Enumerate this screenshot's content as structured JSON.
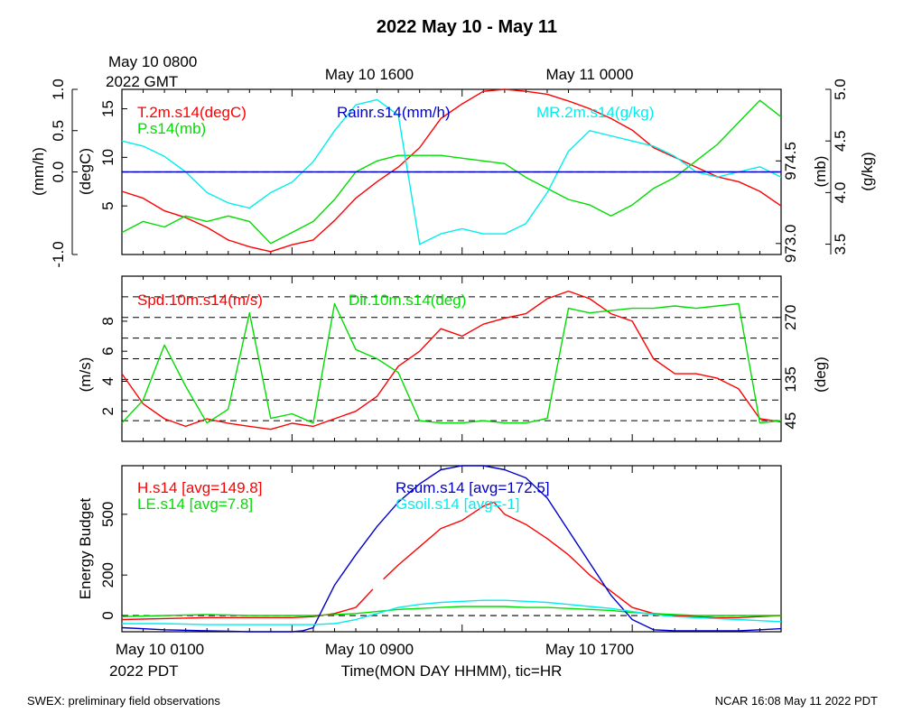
{
  "page": {
    "title": "2022 May 10 - May 11",
    "top_axis": {
      "first_label_line1": "May 10 0800",
      "first_label_line2": "2022 GMT",
      "labels": [
        "May 10 1600",
        "May 11 0000"
      ]
    },
    "bottom_axis": {
      "first_label_line1": "May 10 0100",
      "first_label_line2": "2022 PDT",
      "labels": [
        "May 10 0900",
        "May 10 1700"
      ],
      "xlabel": "Time(MON DAY HHMM), tic=HR"
    },
    "footer_left": "SWEX: preliminary field observations",
    "footer_right": "NCAR 16:08 May 11 2022 PDT",
    "colors": {
      "red": "#ff0000",
      "green": "#00dd00",
      "blue": "#0000cc",
      "cyan": "#00eeee",
      "black": "#000000"
    }
  },
  "chart_data": [
    {
      "type": "line",
      "x_unit": "hours since May 10 0100 PDT",
      "xlim": [
        0,
        31
      ],
      "axes": {
        "left_outer": {
          "label": "(mm/h)",
          "ylim": [
            -1.0,
            1.0
          ],
          "ticks": [
            "1.0",
            "0.5",
            "0.0",
            "-1.0"
          ],
          "tick_values": [
            1.0,
            0.5,
            0.0,
            -1.0
          ]
        },
        "left_inner": {
          "label": "(degC)",
          "ylim": [
            0,
            17
          ],
          "ticks": [
            "15",
            "10",
            "5"
          ],
          "tick_values": [
            15,
            10,
            5
          ]
        },
        "right_inner": {
          "label": "(mb)",
          "ylim": [
            972.8,
            975.8
          ],
          "ticks": [
            "974.5",
            "973.0"
          ],
          "tick_values": [
            974.5,
            973.0
          ]
        },
        "right_outer": {
          "label": "(g/kg)",
          "ylim": [
            3.4,
            5.0
          ],
          "ticks": [
            "5.0",
            "4.5",
            "4.0",
            "3.5"
          ],
          "tick_values": [
            5.0,
            4.5,
            4.0,
            3.5
          ]
        }
      },
      "series": [
        {
          "name": "T.2m.s14(degC)",
          "axis": "left_inner",
          "color": "#ff0000",
          "x": [
            0,
            1,
            2,
            3,
            4,
            5,
            6,
            7,
            8,
            9,
            10,
            11,
            12,
            13,
            14,
            15,
            16,
            17,
            18,
            19,
            20,
            21,
            22,
            23,
            24,
            25,
            26,
            27,
            28,
            29,
            30,
            31
          ],
          "values": [
            6.5,
            5.8,
            4.5,
            3.8,
            2.8,
            1.5,
            0.8,
            0.3,
            1.0,
            1.5,
            3.5,
            5.8,
            7.5,
            9.0,
            11.0,
            14.0,
            15.5,
            16.8,
            17.0,
            16.8,
            16.5,
            15.8,
            15.0,
            14.0,
            12.8,
            11.0,
            10.0,
            9.0,
            8.0,
            7.5,
            6.5,
            5.0
          ]
        },
        {
          "name": "P.s14(mb)",
          "axis": "right_inner",
          "color": "#00dd00",
          "x": [
            0,
            1,
            2,
            3,
            4,
            5,
            6,
            7,
            8,
            9,
            10,
            11,
            12,
            13,
            14,
            15,
            16,
            17,
            18,
            19,
            20,
            21,
            22,
            23,
            24,
            25,
            26,
            27,
            28,
            29,
            30,
            31
          ],
          "values": [
            973.2,
            973.4,
            973.3,
            973.5,
            973.4,
            973.5,
            973.4,
            973.0,
            973.2,
            973.4,
            973.8,
            974.3,
            974.5,
            974.6,
            974.6,
            974.6,
            974.55,
            974.5,
            974.45,
            974.2,
            974.0,
            973.8,
            973.7,
            973.5,
            973.7,
            974.0,
            974.2,
            974.5,
            974.8,
            975.2,
            975.6,
            975.3
          ]
        },
        {
          "name": "MR.2m.s14(g/kg)",
          "axis": "right_outer",
          "color": "#00eeee",
          "x": [
            0,
            1,
            2,
            3,
            4,
            5,
            6,
            7,
            8,
            9,
            10,
            11,
            12,
            13,
            14,
            15,
            16,
            17,
            18,
            19,
            20,
            21,
            22,
            23,
            24,
            25,
            26,
            27,
            28,
            29,
            30,
            31
          ],
          "values": [
            4.5,
            4.45,
            4.35,
            4.2,
            4.0,
            3.9,
            3.85,
            4.0,
            4.1,
            4.3,
            4.6,
            4.85,
            4.9,
            4.75,
            3.5,
            3.6,
            3.65,
            3.6,
            3.6,
            3.7,
            4.0,
            4.4,
            4.6,
            4.55,
            4.5,
            4.45,
            4.35,
            4.2,
            4.15,
            4.2,
            4.25,
            4.15
          ]
        },
        {
          "name": "Rainr.s14(mm/h)",
          "axis": "left_outer",
          "color": "#0000cc",
          "x": [
            0,
            31
          ],
          "values": [
            0,
            0
          ]
        }
      ],
      "reference_lines": [
        {
          "axis": "left_outer",
          "value": 0,
          "style": "dashed",
          "color": "#000000"
        }
      ]
    },
    {
      "type": "line",
      "x_unit": "hours since May 10 0100 PDT",
      "xlim": [
        0,
        31
      ],
      "axes": {
        "left": {
          "label": "(m/s)",
          "ylim": [
            0,
            11
          ],
          "ticks": [
            "8",
            "6",
            "4",
            "2"
          ],
          "tick_values": [
            8,
            6,
            4,
            2
          ]
        },
        "right": {
          "label": "(deg)",
          "ylim": [
            0,
            360
          ],
          "ticks": [
            "270",
            "135",
            "45"
          ],
          "tick_values": [
            270,
            135,
            45
          ]
        }
      },
      "series": [
        {
          "name": "Spd.10m.s14(m/s)",
          "axis": "left",
          "color": "#ff0000",
          "x": [
            0,
            1,
            2,
            3,
            4,
            5,
            6,
            7,
            8,
            9,
            10,
            11,
            12,
            13,
            14,
            15,
            16,
            17,
            18,
            19,
            20,
            21,
            22,
            23,
            24,
            25,
            26,
            27,
            28,
            29,
            30,
            31
          ],
          "values": [
            4.5,
            2.5,
            1.5,
            1.0,
            1.5,
            1.2,
            1.0,
            0.8,
            1.2,
            1.0,
            1.5,
            2.0,
            3.0,
            5.0,
            6.0,
            7.5,
            7.0,
            7.8,
            8.2,
            8.5,
            9.5,
            10.0,
            9.5,
            8.5,
            8.0,
            5.5,
            4.5,
            4.5,
            4.2,
            3.5,
            1.5,
            1.3
          ]
        },
        {
          "name": "Dir.10m.s14(deg)",
          "axis": "right",
          "color": "#00dd00",
          "x": [
            0,
            1,
            2,
            3,
            4,
            5,
            6,
            7,
            8,
            9,
            10,
            11,
            12,
            13,
            14,
            15,
            16,
            17,
            18,
            19,
            20,
            21,
            22,
            23,
            24,
            25,
            26,
            27,
            28,
            29,
            30,
            31
          ],
          "values": [
            40,
            90,
            210,
            120,
            40,
            70,
            280,
            50,
            60,
            40,
            300,
            200,
            180,
            150,
            45,
            40,
            40,
            45,
            40,
            40,
            50,
            290,
            280,
            285,
            290,
            290,
            295,
            290,
            295,
            300,
            40,
            45
          ]
        }
      ],
      "reference_lines": [
        {
          "axis": "right",
          "value": 45,
          "style": "dashed"
        },
        {
          "axis": "right",
          "value": 90,
          "style": "dashed"
        },
        {
          "axis": "right",
          "value": 135,
          "style": "dashed"
        },
        {
          "axis": "right",
          "value": 180,
          "style": "dashed"
        },
        {
          "axis": "right",
          "value": 225,
          "style": "dashed"
        },
        {
          "axis": "right",
          "value": 270,
          "style": "dashed"
        },
        {
          "axis": "right",
          "value": 315,
          "style": "dashed"
        }
      ]
    },
    {
      "type": "line",
      "x_unit": "hours since May 10 0100 PDT",
      "xlim": [
        0,
        31
      ],
      "axes": {
        "left": {
          "label": "Energy Budget",
          "ylim": [
            -80,
            740
          ],
          "ticks": [
            "500",
            "200",
            "0"
          ],
          "tick_values": [
            500,
            200,
            0
          ]
        }
      },
      "series": [
        {
          "name": "H.s14 [avg=149.8]",
          "color": "#ff0000",
          "x": [
            0,
            2,
            4,
            6,
            8,
            9,
            10,
            11,
            11.8,
            null,
            12.3,
            13,
            14,
            15,
            16,
            17,
            17.5,
            18,
            19,
            20,
            21,
            22,
            23,
            24,
            25,
            26,
            27,
            28,
            29,
            30,
            31
          ],
          "values": [
            -20,
            -15,
            -10,
            -10,
            -10,
            -5,
            10,
            40,
            130,
            null,
            180,
            250,
            340,
            430,
            470,
            540,
            560,
            500,
            450,
            380,
            300,
            200,
            120,
            40,
            10,
            0,
            -5,
            -10,
            -10,
            -5,
            0
          ]
        },
        {
          "name": "LE.s14 [avg=7.8]",
          "color": "#00dd00",
          "x": [
            0,
            2,
            4,
            6,
            8,
            9,
            10,
            11,
            12,
            13,
            14,
            15,
            16,
            17,
            18,
            19,
            20,
            21,
            22,
            23,
            24,
            25,
            26,
            27,
            28,
            29,
            30,
            31
          ],
          "values": [
            -5,
            0,
            5,
            0,
            0,
            0,
            5,
            10,
            20,
            30,
            35,
            40,
            45,
            45,
            45,
            40,
            40,
            35,
            30,
            25,
            15,
            10,
            5,
            0,
            0,
            0,
            0,
            0
          ]
        },
        {
          "name": "Rsum.s14 [avg=172.5]",
          "color": "#0000cc",
          "x": [
            0,
            2,
            4,
            6,
            8,
            8.5,
            9,
            10,
            11,
            12,
            13,
            14,
            15,
            16,
            17,
            18,
            19,
            20,
            21,
            22,
            23,
            24,
            25,
            26,
            27,
            28,
            29,
            30,
            31
          ],
          "values": [
            -60,
            -70,
            -75,
            -80,
            -80,
            -75,
            -60,
            150,
            300,
            440,
            560,
            650,
            720,
            750,
            750,
            720,
            680,
            580,
            420,
            260,
            100,
            -20,
            -70,
            -75,
            -75,
            -75,
            -75,
            -70,
            -65
          ]
        },
        {
          "name": "Gsoil.s14 [avg=-1]",
          "color": "#00eeee",
          "x": [
            0,
            2,
            4,
            6,
            8,
            9,
            10,
            11,
            12,
            13,
            14,
            15,
            16,
            17,
            18,
            19,
            20,
            21,
            22,
            23,
            24,
            25,
            26,
            27,
            28,
            29,
            30,
            31
          ],
          "values": [
            -40,
            -40,
            -45,
            -45,
            -45,
            -45,
            -40,
            -20,
            10,
            40,
            55,
            65,
            70,
            75,
            75,
            70,
            65,
            55,
            45,
            35,
            20,
            5,
            -5,
            -10,
            -15,
            -20,
            -25,
            -30
          ]
        }
      ],
      "reference_lines": [
        {
          "axis": "left",
          "value": 0,
          "style": "dashed",
          "color": "#000000"
        }
      ]
    }
  ]
}
